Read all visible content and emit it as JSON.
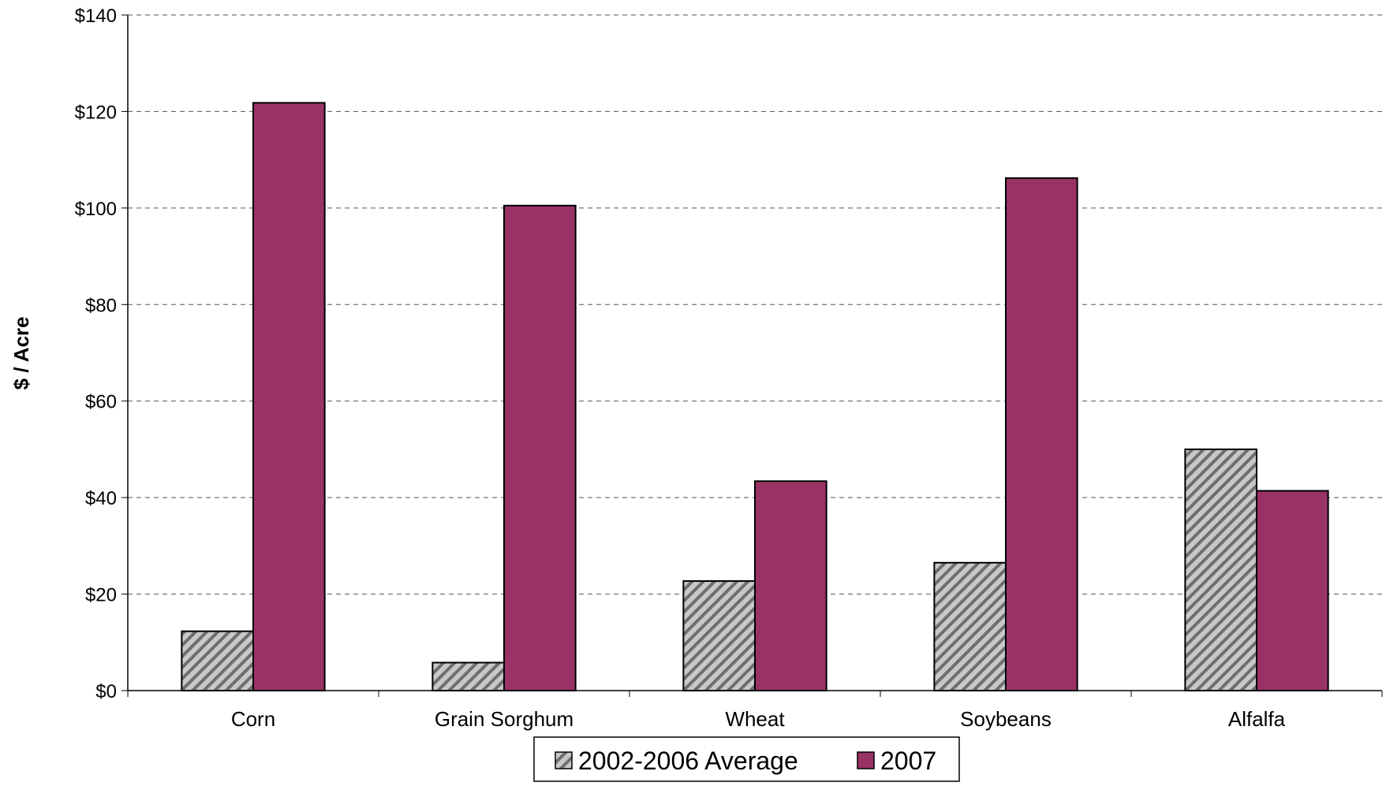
{
  "chart_data": {
    "type": "bar",
    "title": "",
    "xlabel": "",
    "ylabel": "$ / Acre",
    "ylim": [
      0,
      140
    ],
    "yticks": [
      0,
      20,
      40,
      60,
      80,
      100,
      120,
      140
    ],
    "ytick_labels": [
      "$0",
      "$20",
      "$40",
      "$60",
      "$80",
      "$100",
      "$120",
      "$140"
    ],
    "grid": true,
    "legend_position": "bottom",
    "categories": [
      "Corn",
      "Grain Sorghum",
      "Wheat",
      "Soybeans",
      "Alfalfa"
    ],
    "series": [
      {
        "name": "2002-2006 Average",
        "values": [
          12.3,
          5.8,
          22.7,
          26.5,
          50.0
        ],
        "color": "#a6a6a6",
        "pattern": "diagonal-hatch"
      },
      {
        "name": "2007",
        "values": [
          121.8,
          100.5,
          43.4,
          106.2,
          41.4
        ],
        "color": "#993366",
        "pattern": "solid"
      }
    ]
  }
}
